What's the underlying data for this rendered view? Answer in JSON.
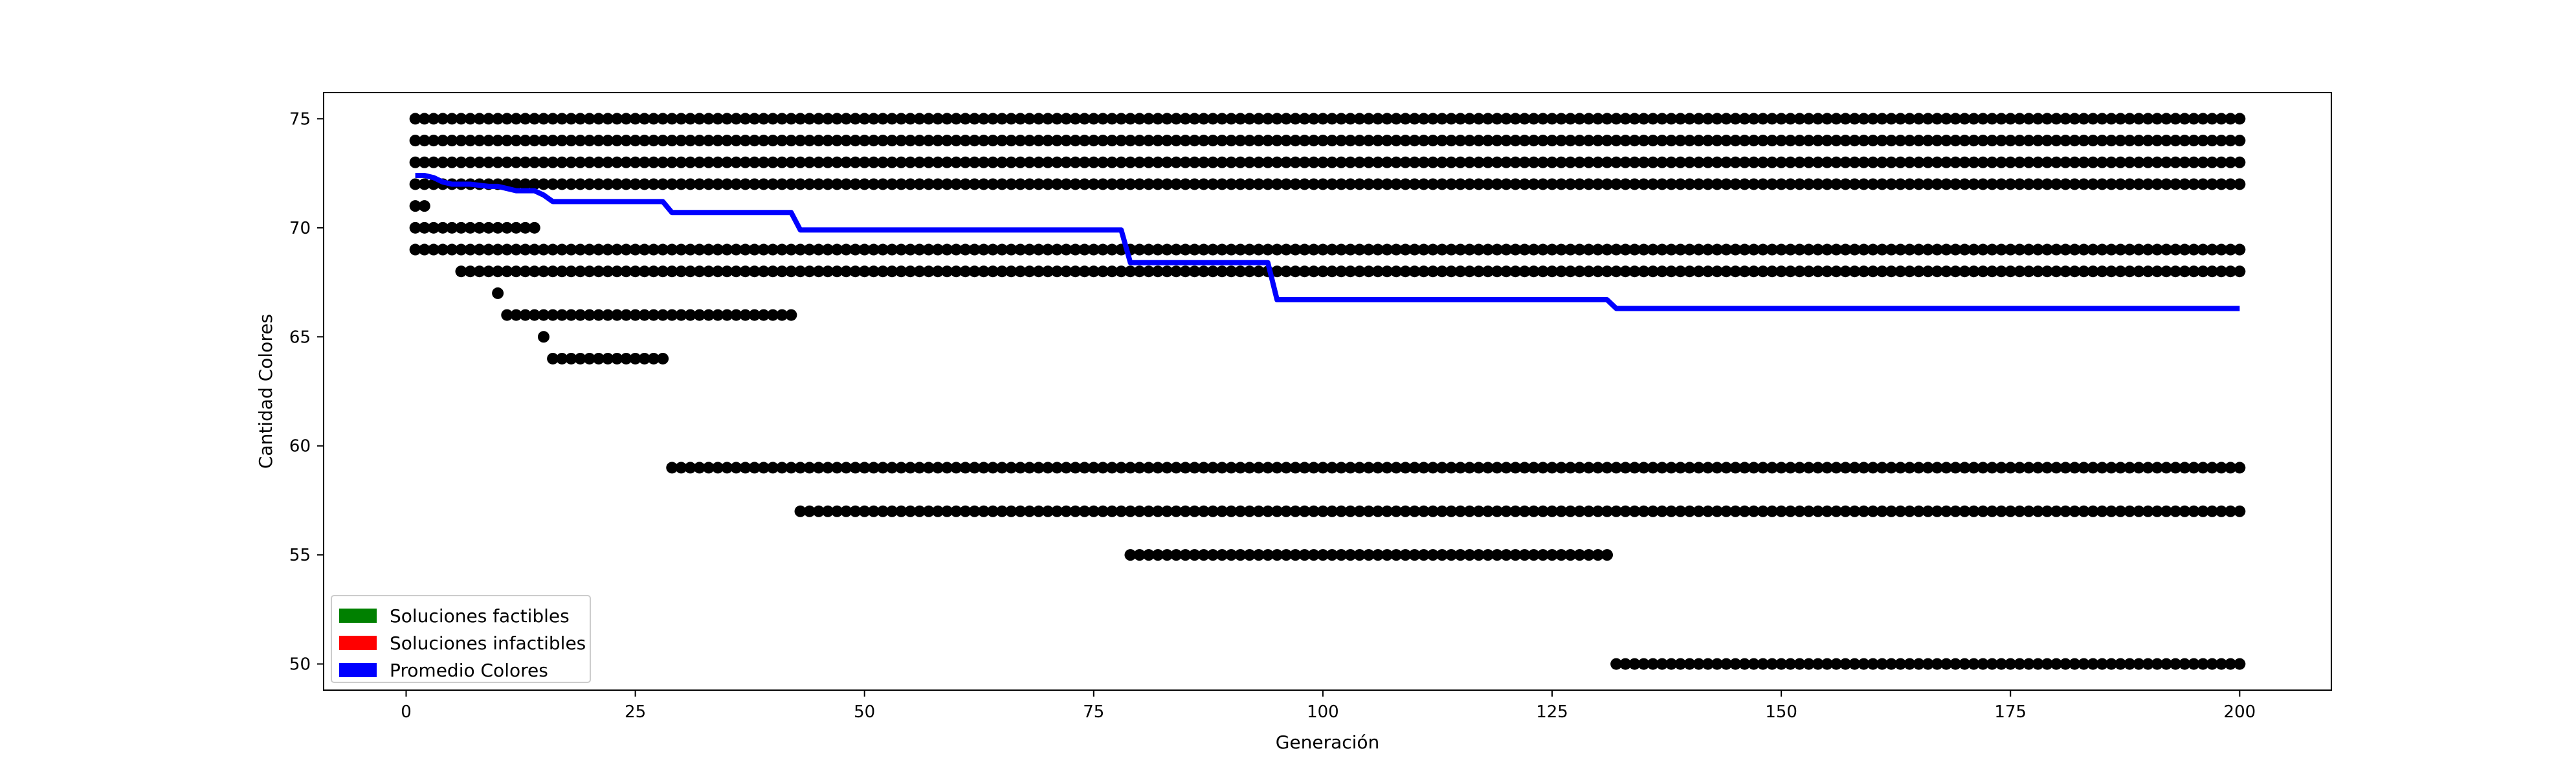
{
  "chart_data": {
    "type": "scatter",
    "title": "",
    "xlabel": "Generación",
    "ylabel": "Cantidad Colores",
    "xlim": [
      -9,
      210
    ],
    "ylim": [
      48.8,
      76.2
    ],
    "xticks": [
      0,
      25,
      50,
      75,
      100,
      125,
      150,
      175,
      200
    ],
    "yticks": [
      50,
      55,
      60,
      65,
      70,
      75
    ],
    "grid": false,
    "legend_position": "lower-left",
    "legend": [
      {
        "label": "Soluciones factibles",
        "color": "#008000"
      },
      {
        "label": "Soluciones infactibles",
        "color": "#ff0000"
      },
      {
        "label": "Promedio Colores",
        "color": "#0000ff"
      }
    ],
    "scatter_color": "#000000",
    "scatter_segments": [
      {
        "y": 75,
        "x_start": 1,
        "x_end": 200
      },
      {
        "y": 74,
        "x_start": 1,
        "x_end": 200
      },
      {
        "y": 73,
        "x_start": 1,
        "x_end": 200
      },
      {
        "y": 72,
        "x_start": 1,
        "x_end": 200
      },
      {
        "y": 71,
        "x_start": 1,
        "x_end": 2
      },
      {
        "y": 70,
        "x_start": 1,
        "x_end": 14
      },
      {
        "y": 69,
        "x_start": 1,
        "x_end": 200
      },
      {
        "y": 68,
        "x_start": 6,
        "x_end": 200
      },
      {
        "y": 67,
        "x_start": 10,
        "x_end": 10
      },
      {
        "y": 66,
        "x_start": 11,
        "x_end": 42
      },
      {
        "y": 65,
        "x_start": 15,
        "x_end": 15
      },
      {
        "y": 64,
        "x_start": 16,
        "x_end": 28
      },
      {
        "y": 59,
        "x_start": 29,
        "x_end": 200
      },
      {
        "y": 57,
        "x_start": 43,
        "x_end": 200
      },
      {
        "y": 55,
        "x_start": 79,
        "x_end": 131
      },
      {
        "y": 50,
        "x_start": 132,
        "x_end": 200
      }
    ],
    "series": [
      {
        "name": "Promedio Colores",
        "color": "#0000ff",
        "x": [
          1,
          2,
          3,
          4,
          5,
          6,
          7,
          8,
          9,
          10,
          11,
          12,
          13,
          14,
          15,
          16,
          28,
          29,
          42,
          43,
          78,
          79,
          94,
          95,
          131,
          132,
          200
        ],
        "y": [
          72.4,
          72.4,
          72.3,
          72.1,
          72.0,
          72.0,
          72.0,
          71.95,
          71.9,
          71.9,
          71.8,
          71.7,
          71.7,
          71.7,
          71.5,
          71.2,
          71.2,
          70.7,
          70.7,
          69.9,
          69.9,
          68.4,
          68.4,
          66.7,
          66.7,
          66.3,
          66.3
        ]
      }
    ]
  }
}
